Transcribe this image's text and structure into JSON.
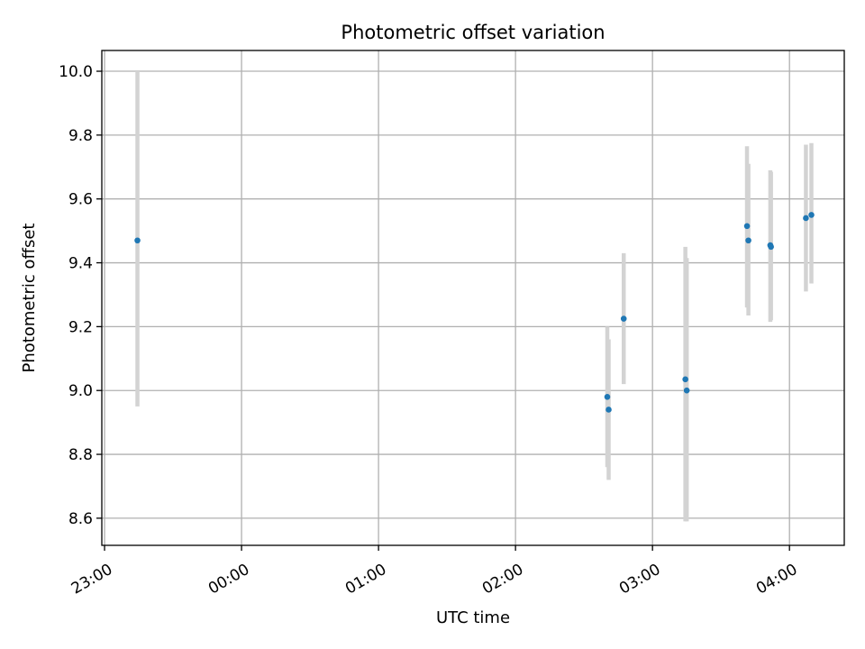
{
  "chart_data": {
    "type": "scatter",
    "title": "Photometric offset variation",
    "xlabel": "UTC time",
    "ylabel": "Photometric offset",
    "grid": true,
    "x_unit": "UTC time of night (hours; 23:00 = 23.0, times after midnight written as 24 + hour)",
    "xlim": [
      22.98,
      28.4
    ],
    "ylim": [
      8.515,
      10.065
    ],
    "x_ticks": [
      {
        "value": 23.0,
        "label": "23:00"
      },
      {
        "value": 24.0,
        "label": "00:00"
      },
      {
        "value": 25.0,
        "label": "01:00"
      },
      {
        "value": 26.0,
        "label": "02:00"
      },
      {
        "value": 27.0,
        "label": "03:00"
      },
      {
        "value": 28.0,
        "label": "04:00"
      }
    ],
    "y_ticks": [
      {
        "value": 8.6,
        "label": "8.6"
      },
      {
        "value": 8.8,
        "label": "8.8"
      },
      {
        "value": 9.0,
        "label": "9.0"
      },
      {
        "value": 9.2,
        "label": "9.2"
      },
      {
        "value": 9.4,
        "label": "9.4"
      },
      {
        "value": 9.6,
        "label": "9.6"
      },
      {
        "value": 9.8,
        "label": "9.8"
      },
      {
        "value": 10.0,
        "label": "10.0"
      }
    ],
    "series": [
      {
        "marker_color": "#1f77b4",
        "errorbar_color": "#d3d3d3",
        "points": [
          {
            "x": 23.24,
            "y": 9.47,
            "ylo": 8.95,
            "yhi": 10.0
          },
          {
            "x": 26.67,
            "y": 8.98,
            "ylo": 8.76,
            "yhi": 9.2
          },
          {
            "x": 26.68,
            "y": 8.94,
            "ylo": 8.72,
            "yhi": 9.16
          },
          {
            "x": 26.79,
            "y": 9.225,
            "ylo": 9.02,
            "yhi": 9.43
          },
          {
            "x": 27.24,
            "y": 9.035,
            "ylo": 8.59,
            "yhi": 9.45
          },
          {
            "x": 27.25,
            "y": 9.0,
            "ylo": 8.59,
            "yhi": 9.415
          },
          {
            "x": 27.69,
            "y": 9.515,
            "ylo": 9.26,
            "yhi": 9.765
          },
          {
            "x": 27.7,
            "y": 9.47,
            "ylo": 9.235,
            "yhi": 9.71
          },
          {
            "x": 27.86,
            "y": 9.455,
            "ylo": 9.215,
            "yhi": 9.69
          },
          {
            "x": 27.865,
            "y": 9.45,
            "ylo": 9.22,
            "yhi": 9.685
          },
          {
            "x": 28.12,
            "y": 9.54,
            "ylo": 9.31,
            "yhi": 9.77
          },
          {
            "x": 28.16,
            "y": 9.55,
            "ylo": 9.335,
            "yhi": 9.775
          }
        ]
      }
    ]
  }
}
